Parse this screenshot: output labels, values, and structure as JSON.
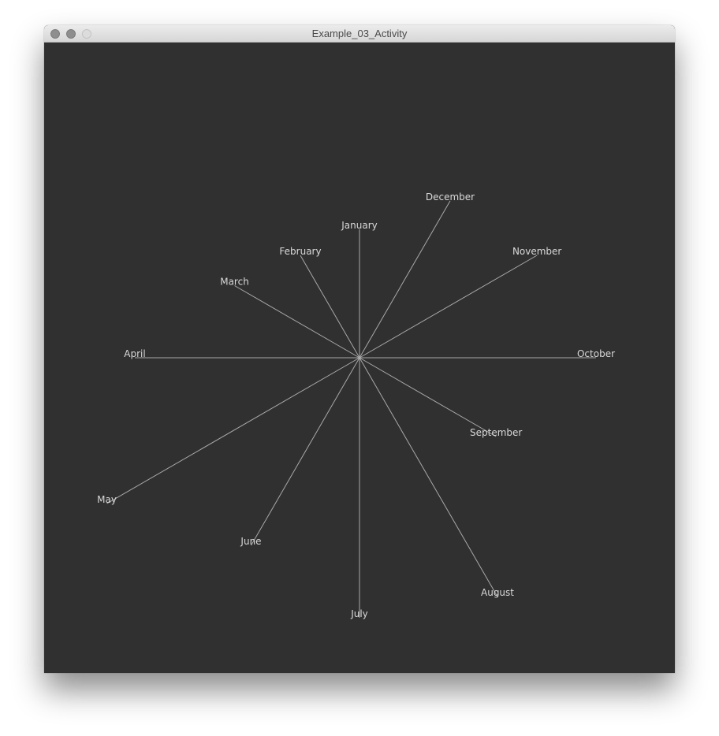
{
  "window": {
    "title": "Example_03_Activity"
  },
  "chart_data": {
    "type": "radial",
    "labels": [
      "January",
      "February",
      "March",
      "April",
      "May",
      "June",
      "July",
      "August",
      "September",
      "October",
      "November",
      "December"
    ],
    "values": [
      163,
      150,
      183,
      285,
      370,
      275,
      330,
      350,
      200,
      300,
      260,
      230
    ],
    "line_color": "#a9a9a9",
    "label_color": "#d9d9d9",
    "background": "#303030"
  }
}
